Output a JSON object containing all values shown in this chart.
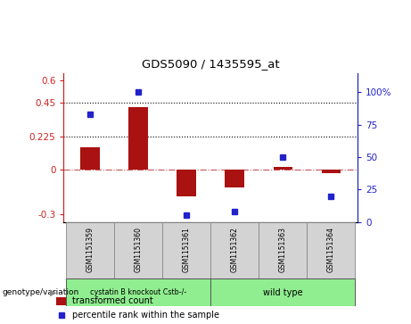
{
  "title": "GDS5090 / 1435595_at",
  "samples": [
    "GSM1151359",
    "GSM1151360",
    "GSM1151361",
    "GSM1151362",
    "GSM1151363",
    "GSM1151364"
  ],
  "bar_values": [
    0.15,
    0.42,
    -0.18,
    -0.12,
    0.02,
    -0.02
  ],
  "dot_values": [
    83,
    100,
    5,
    8,
    50,
    20
  ],
  "bar_color": "#AA1111",
  "dot_color": "#2222CC",
  "ylim_left": [
    -0.35,
    0.65
  ],
  "ylim_right": [
    0,
    115
  ],
  "yticks_left": [
    -0.3,
    0,
    0.225,
    0.45,
    0.6
  ],
  "ytick_labels_left": [
    "-0.3",
    "0",
    "0.225",
    "0.45",
    "0.6"
  ],
  "yticks_right": [
    0,
    25,
    50,
    75,
    100
  ],
  "ytick_labels_right": [
    "0",
    "25",
    "50",
    "75",
    "100%"
  ],
  "hline_y": [
    0.225,
    0.45
  ],
  "zero_line_y": 0,
  "group1_label": "cystatin B knockout Cstb-/-",
  "group2_label": "wild type",
  "group1_color": "#90EE90",
  "group2_color": "#90EE90",
  "group1_indices": [
    0,
    1,
    2
  ],
  "group2_indices": [
    3,
    4,
    5
  ],
  "genotype_label": "genotype/variation",
  "legend_bar": "transformed count",
  "legend_dot": "percentile rank within the sample",
  "background_color": "#FFFFFF",
  "plot_bg_color": "#FFFFFF",
  "tick_color_left": "#CC2222",
  "tick_color_right": "#2222CC"
}
